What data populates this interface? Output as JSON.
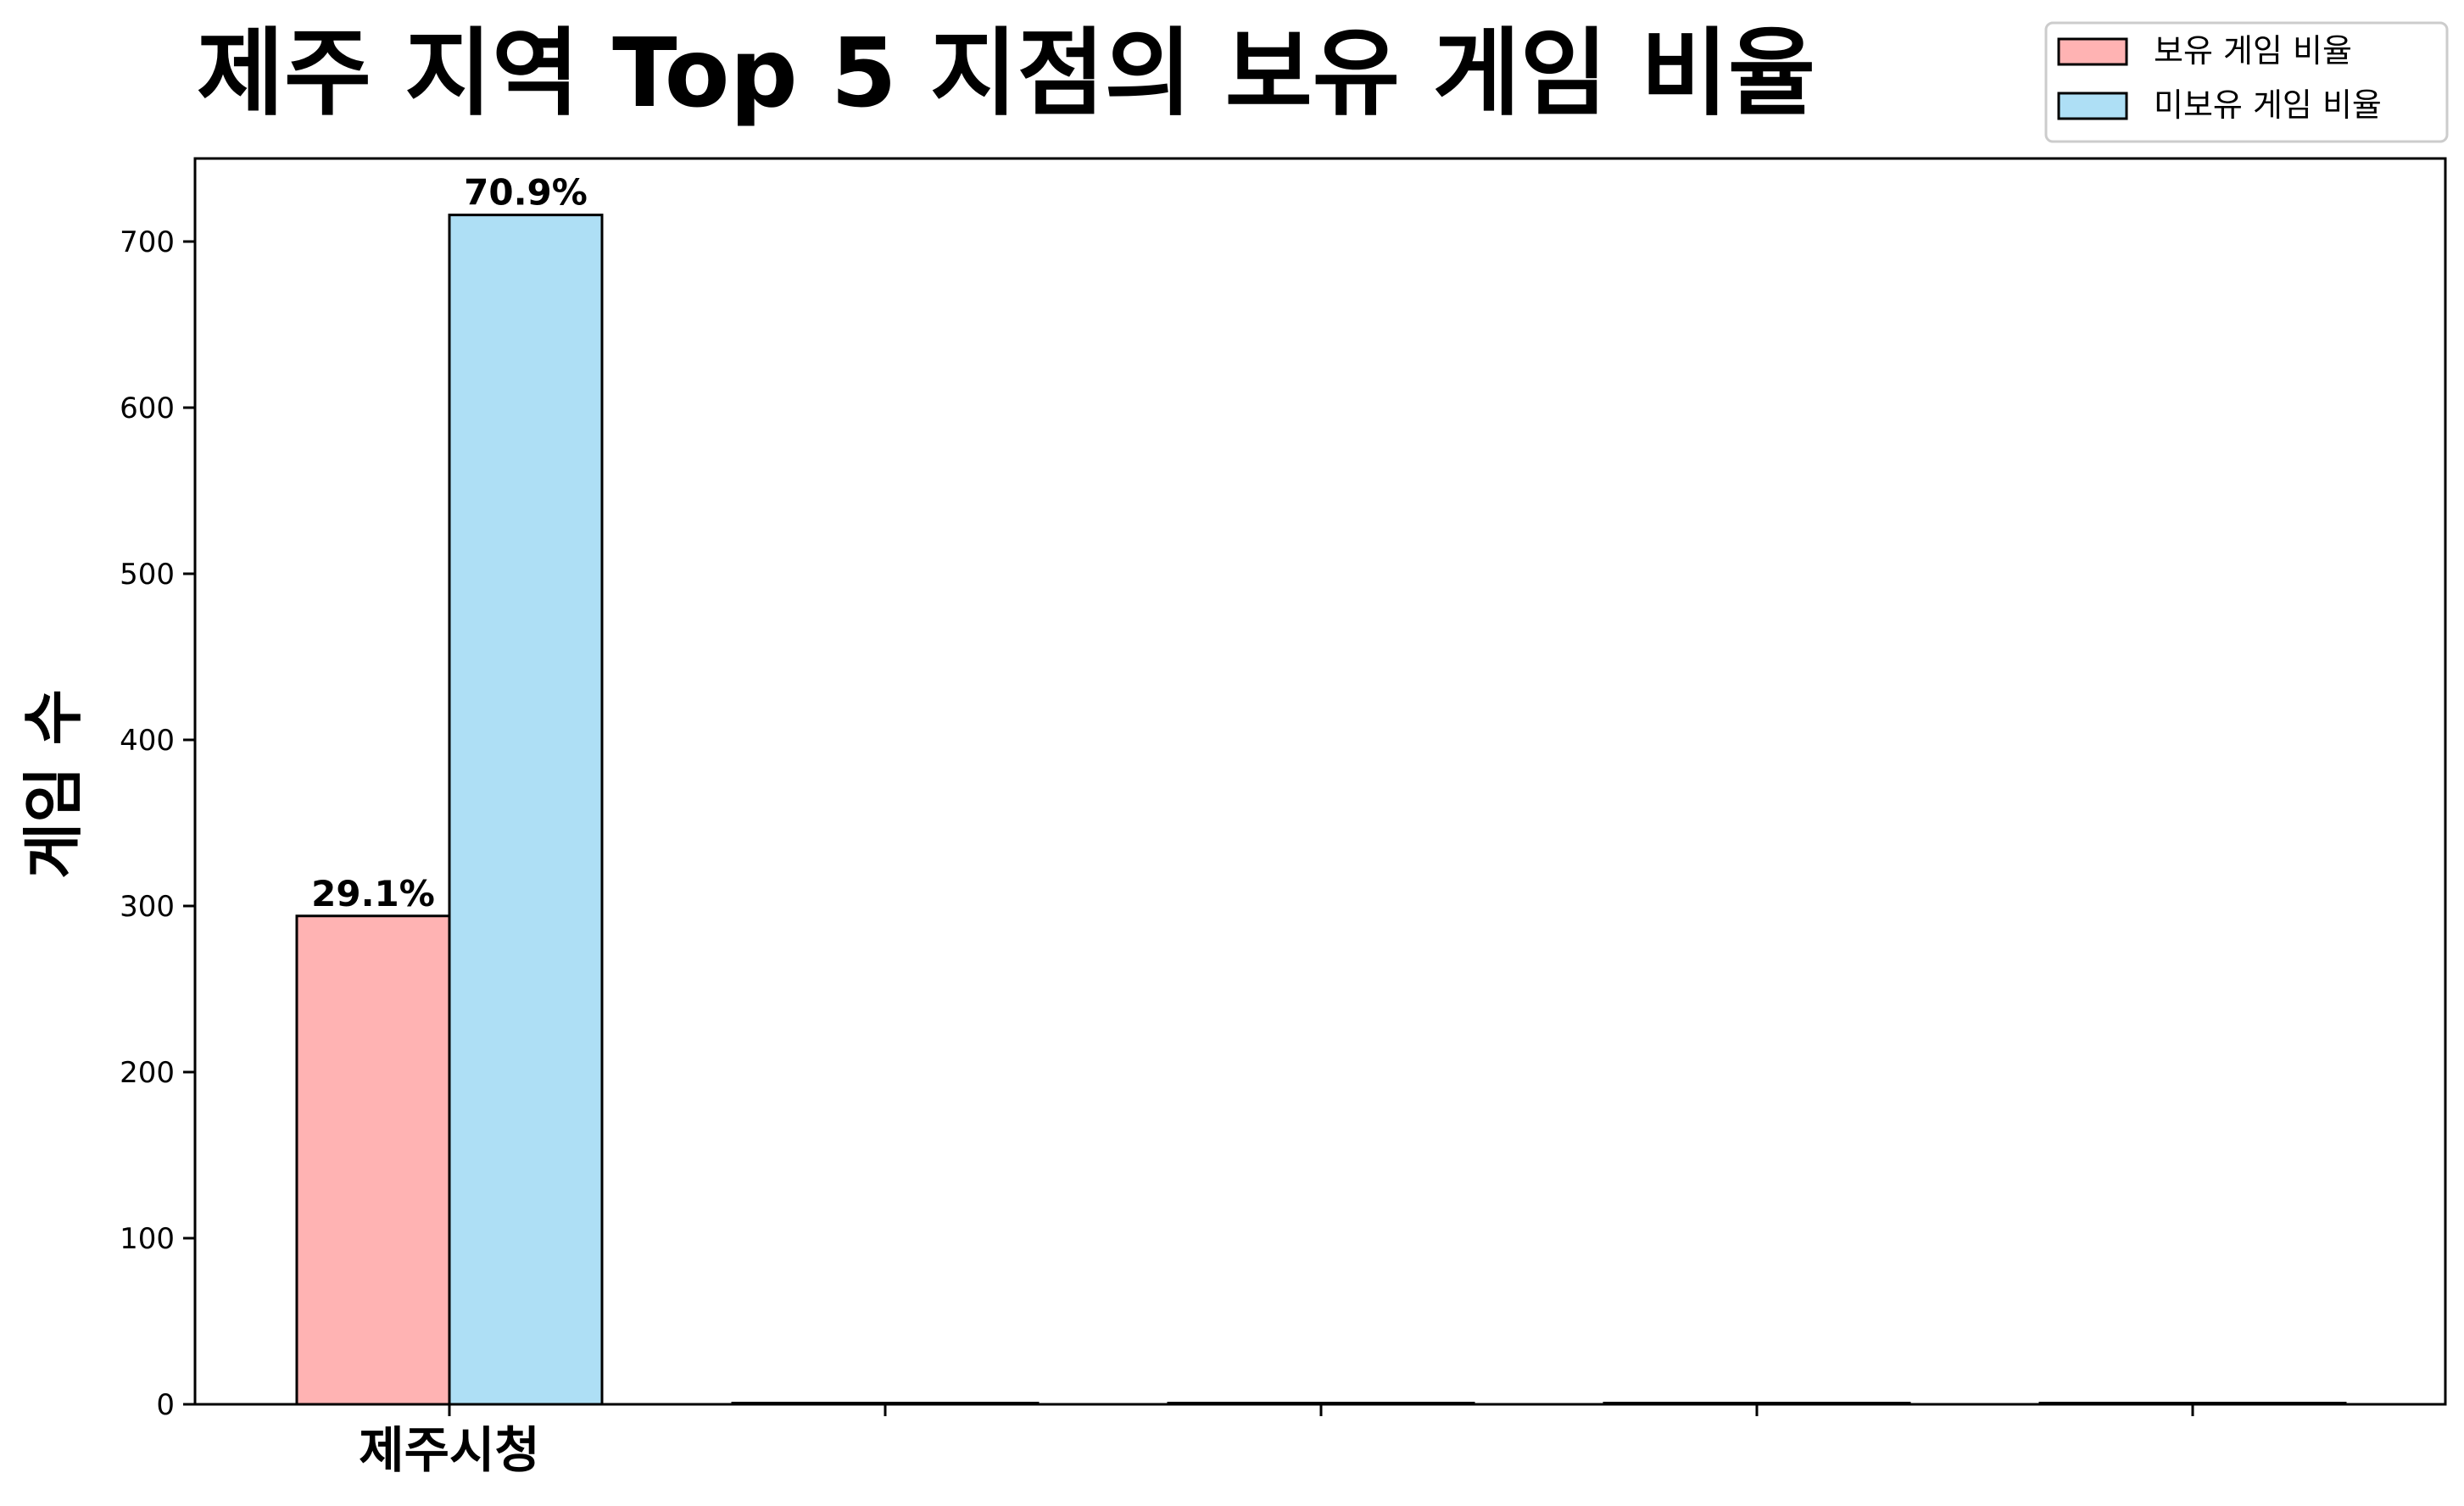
{
  "chart_data": {
    "type": "bar",
    "title": "제주 지역 Top 5 지점의 보유 게임 비율",
    "xlabel": "",
    "ylabel": "게임 수",
    "categories": [
      "제주시청",
      "",
      "",
      "",
      ""
    ],
    "series": [
      {
        "name": "보유 게임 비율",
        "values": [
          294,
          0,
          0,
          0,
          0
        ],
        "labels": [
          "29.1%",
          "",
          "",
          "",
          ""
        ],
        "color": "#ffb3b3"
      },
      {
        "name": "미보유 게임 비율",
        "values": [
          716,
          0,
          0,
          0,
          0
        ],
        "labels": [
          "70.9%",
          "",
          "",
          "",
          ""
        ],
        "color": "#aedff5"
      }
    ],
    "ylim": [
      0,
      750
    ],
    "yticks": [
      0,
      100,
      200,
      300,
      400,
      500,
      600,
      700
    ],
    "grid": false,
    "legend_position": "top-right",
    "edge_color": "#000000"
  }
}
